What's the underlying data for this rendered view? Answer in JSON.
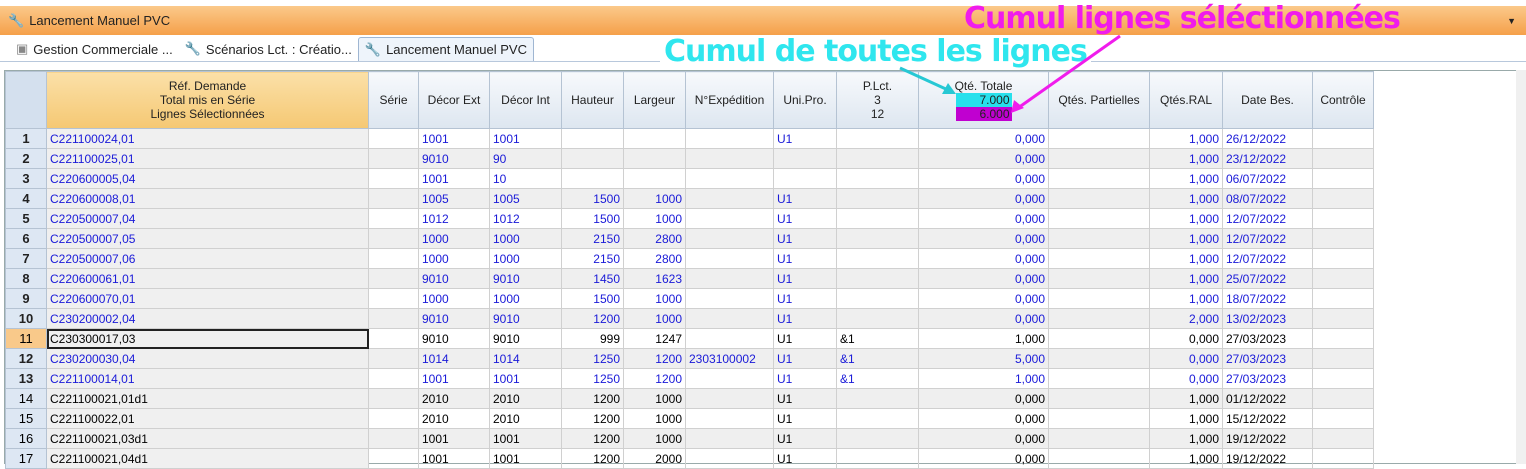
{
  "window": {
    "title": "Lancement Manuel PVC"
  },
  "tabs": [
    {
      "label": "Gestion Commerciale ..."
    },
    {
      "label": "Scénarios Lct. : Créatio..."
    },
    {
      "label": "Lancement Manuel PVC"
    }
  ],
  "columns": {
    "ref": [
      "Réf. Demande",
      "Total mis en Série",
      "Lignes Sélectionnées"
    ],
    "serie": "Série",
    "decor_ext": "Décor Ext",
    "decor_int": "Décor Int",
    "hauteur": "Hauteur",
    "largeur": "Largeur",
    "expedition": "N°Expédition",
    "unipro": "Uni.Pro.",
    "plct": [
      "P.Lct.",
      "3",
      "12"
    ],
    "qte_totale": "Qté. Totale",
    "qte_totale_all": "7.000",
    "qte_totale_selected": "6.000",
    "partielles": "Qtés. Partielles",
    "ral": "Qtés.RAL",
    "date": "Date Bes.",
    "controle": "Contrôle"
  },
  "annotations": {
    "all_lines": "Cumul de toutes les lignes",
    "selected_lines": "Cumul lignes séléctionnées"
  },
  "colors": {
    "all_lines": "#27e0ec",
    "selected_lines": "#c000d0",
    "title_bar": "#f5a04a",
    "link_text": "#1a1ad8"
  },
  "rows": [
    {
      "n": "1",
      "ref": "C221100024,01",
      "serie": "",
      "ext": "1001",
      "int": "1001",
      "h": "",
      "l": "",
      "exp": "",
      "uni": "U1",
      "plct": "",
      "qte": "0,000",
      "part": "",
      "ral": "1,000",
      "date": "26/12/2022",
      "ctrl": "",
      "style": "blue"
    },
    {
      "n": "2",
      "ref": "C221100025,01",
      "serie": "",
      "ext": "9010",
      "int": "90",
      "h": "",
      "l": "",
      "exp": "",
      "uni": "",
      "plct": "",
      "qte": "0,000",
      "part": "",
      "ral": "1,000",
      "date": "23/12/2022",
      "ctrl": "",
      "style": "blue"
    },
    {
      "n": "3",
      "ref": "C220600005,04",
      "serie": "",
      "ext": "1001",
      "int": "10",
      "h": "",
      "l": "",
      "exp": "",
      "uni": "",
      "plct": "",
      "qte": "0,000",
      "part": "",
      "ral": "1,000",
      "date": "06/07/2022",
      "ctrl": "",
      "style": "blue"
    },
    {
      "n": "4",
      "ref": "C220600008,01",
      "serie": "",
      "ext": "1005",
      "int": "1005",
      "h": "1500",
      "l": "1000",
      "exp": "",
      "uni": "U1",
      "plct": "",
      "qte": "0,000",
      "part": "",
      "ral": "1,000",
      "date": "08/07/2022",
      "ctrl": "",
      "style": "blue"
    },
    {
      "n": "5",
      "ref": "C220500007,04",
      "serie": "",
      "ext": "1012",
      "int": "1012",
      "h": "1500",
      "l": "1000",
      "exp": "",
      "uni": "U1",
      "plct": "",
      "qte": "0,000",
      "part": "",
      "ral": "1,000",
      "date": "12/07/2022",
      "ctrl": "",
      "style": "blue"
    },
    {
      "n": "6",
      "ref": "C220500007,05",
      "serie": "",
      "ext": "1000",
      "int": "1000",
      "h": "2150",
      "l": "2800",
      "exp": "",
      "uni": "U1",
      "plct": "",
      "qte": "0,000",
      "part": "",
      "ral": "1,000",
      "date": "12/07/2022",
      "ctrl": "",
      "style": "blue"
    },
    {
      "n": "7",
      "ref": "C220500007,06",
      "serie": "",
      "ext": "1000",
      "int": "1000",
      "h": "2150",
      "l": "2800",
      "exp": "",
      "uni": "U1",
      "plct": "",
      "qte": "0,000",
      "part": "",
      "ral": "1,000",
      "date": "12/07/2022",
      "ctrl": "",
      "style": "blue"
    },
    {
      "n": "8",
      "ref": "C220600061,01",
      "serie": "",
      "ext": "9010",
      "int": "9010",
      "h": "1450",
      "l": "1623",
      "exp": "",
      "uni": "U1",
      "plct": "",
      "qte": "0,000",
      "part": "",
      "ral": "1,000",
      "date": "25/07/2022",
      "ctrl": "",
      "style": "blue"
    },
    {
      "n": "9",
      "ref": "C220600070,01",
      "serie": "",
      "ext": "1000",
      "int": "1000",
      "h": "1500",
      "l": "1000",
      "exp": "",
      "uni": "U1",
      "plct": "",
      "qte": "0,000",
      "part": "",
      "ral": "1,000",
      "date": "18/07/2022",
      "ctrl": "",
      "style": "blue"
    },
    {
      "n": "10",
      "ref": "C230200002,04",
      "serie": "",
      "ext": "9010",
      "int": "9010",
      "h": "1200",
      "l": "1000",
      "exp": "",
      "uni": "U1",
      "plct": "",
      "qte": "0,000",
      "part": "",
      "ral": "2,000",
      "date": "13/02/2023",
      "ctrl": "",
      "style": "blue"
    },
    {
      "n": "11",
      "ref": "C230300017,03",
      "serie": "",
      "ext": "9010",
      "int": "9010",
      "h": "999",
      "l": "1247",
      "exp": "",
      "uni": "U1",
      "plct": "&1",
      "qte": "1,000",
      "part": "",
      "ral": "0,000",
      "date": "27/03/2023",
      "ctrl": "",
      "style": "current"
    },
    {
      "n": "12",
      "ref": "C230200030,04",
      "serie": "",
      "ext": "1014",
      "int": "1014",
      "h": "1250",
      "l": "1200",
      "exp": "2303100002",
      "uni": "U1",
      "plct": "&1",
      "qte": "5,000",
      "part": "",
      "ral": "0,000",
      "date": "27/03/2023",
      "ctrl": "",
      "style": "blue"
    },
    {
      "n": "13",
      "ref": "C221100014,01",
      "serie": "",
      "ext": "1001",
      "int": "1001",
      "h": "1250",
      "l": "1200",
      "exp": "",
      "uni": "U1",
      "plct": "&1",
      "qte": "1,000",
      "part": "",
      "ral": "0,000",
      "date": "27/03/2023",
      "ctrl": "",
      "style": "blue"
    },
    {
      "n": "14",
      "ref": "C221100021,01d1",
      "serie": "",
      "ext": "2010",
      "int": "2010",
      "h": "1200",
      "l": "1000",
      "exp": "",
      "uni": "U1",
      "plct": "",
      "qte": "0,000",
      "part": "",
      "ral": "1,000",
      "date": "01/12/2022",
      "ctrl": "",
      "style": "black"
    },
    {
      "n": "15",
      "ref": "C221100022,01",
      "serie": "",
      "ext": "2010",
      "int": "2010",
      "h": "1200",
      "l": "1000",
      "exp": "",
      "uni": "U1",
      "plct": "",
      "qte": "0,000",
      "part": "",
      "ral": "1,000",
      "date": "15/12/2022",
      "ctrl": "",
      "style": "black"
    },
    {
      "n": "16",
      "ref": "C221100021,03d1",
      "serie": "",
      "ext": "1001",
      "int": "1001",
      "h": "1200",
      "l": "1000",
      "exp": "",
      "uni": "U1",
      "plct": "",
      "qte": "0,000",
      "part": "",
      "ral": "1,000",
      "date": "19/12/2022",
      "ctrl": "",
      "style": "black"
    },
    {
      "n": "17",
      "ref": "C221100021,04d1",
      "serie": "",
      "ext": "1001",
      "int": "1001",
      "h": "1200",
      "l": "2000",
      "exp": "",
      "uni": "U1",
      "plct": "",
      "qte": "0,000",
      "part": "",
      "ral": "1,000",
      "date": "19/12/2022",
      "ctrl": "",
      "style": "black"
    }
  ]
}
